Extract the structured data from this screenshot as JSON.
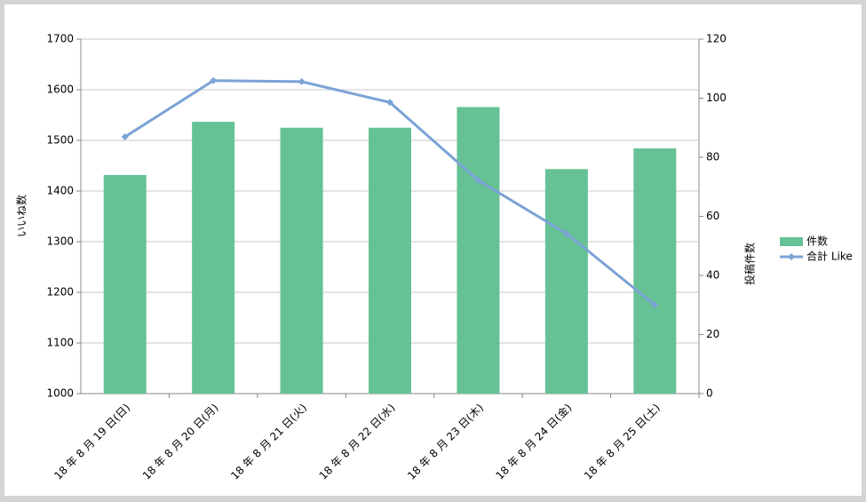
{
  "chart_data": {
    "type": "combo",
    "y_label": "いいね数",
    "y2_label": "投稿件数",
    "categories": [
      "18 年 8 月 19 日(日)",
      "18 年 8 月 20 日(月)",
      "18 年 8 月 21 日(火)",
      "18 年 8 月 22 日(水)",
      "18 年 8 月 23 日(木)",
      "18 年 8 月 24 日(金)",
      "18 年 8 月 25 日(土)"
    ],
    "series": [
      {
        "name": "件数",
        "type": "bar",
        "axis": "y2",
        "color": "#66c295",
        "values": [
          74,
          92,
          90,
          90,
          97,
          76,
          83
        ]
      },
      {
        "name": "合計 Like",
        "type": "line",
        "axis": "y",
        "color": "#7ba3d6",
        "values": [
          1507,
          1618,
          1616,
          1575,
          1421,
          1316,
          1175
        ]
      }
    ],
    "ylim": [
      1000,
      1700
    ],
    "yticks": [
      1000,
      1100,
      1200,
      1300,
      1400,
      1500,
      1600,
      1700
    ],
    "y2lim": [
      0,
      120
    ],
    "y2ticks": [
      0,
      20,
      40,
      60,
      80,
      100,
      120
    ],
    "grid": true,
    "legend": "right"
  }
}
